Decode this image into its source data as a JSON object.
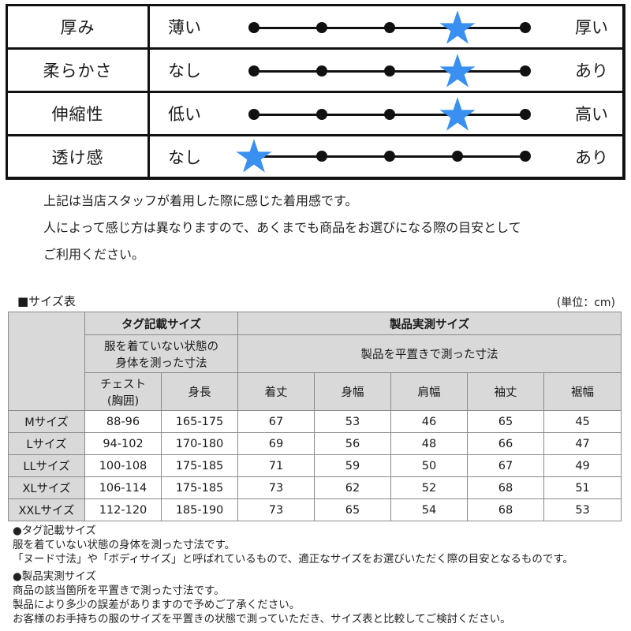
{
  "feel_table": {
    "scale_points": 5,
    "star_color": "#3a90f0",
    "rows": [
      {
        "label": "厚み",
        "low": "薄い",
        "high": "厚い",
        "position": 4
      },
      {
        "label": "柔らかさ",
        "low": "なし",
        "high": "あり",
        "position": 4
      },
      {
        "label": "伸縮性",
        "low": "低い",
        "high": "高い",
        "position": 4
      },
      {
        "label": "透け感",
        "low": "なし",
        "high": "あり",
        "position": 1
      }
    ]
  },
  "note": {
    "lines": [
      "上記は当店スタッフが着用した際に感じた着用感です。",
      "人によって感じ方は異なりますので、あくまでも商品をお選びになる際の目安として",
      "ご利用ください。"
    ]
  },
  "size_table": {
    "caption": "■サイズ表",
    "unit": "(単位：cm)",
    "group_tag": {
      "title": "タグ記載サイズ",
      "subtitle": "服を着ていない状態の身体を測った寸法",
      "subtitle_line1": "服を着ていない状態の",
      "subtitle_line2": "身体を測った寸法"
    },
    "group_product": {
      "title": "製品実測サイズ",
      "subtitle": "製品を平置きで測った寸法"
    },
    "columns": [
      {
        "label": "チェスト",
        "sub": "(胸囲)"
      },
      {
        "label": "身長"
      },
      {
        "label": "着丈"
      },
      {
        "label": "身幅"
      },
      {
        "label": "肩幅"
      },
      {
        "label": "袖丈"
      },
      {
        "label": "裾幅"
      }
    ],
    "rows": [
      {
        "size": "Mサイズ",
        "values": [
          "88-96",
          "165-175",
          "67",
          "53",
          "46",
          "65",
          "45"
        ]
      },
      {
        "size": "Lサイズ",
        "values": [
          "94-102",
          "170-180",
          "69",
          "56",
          "48",
          "66",
          "47"
        ]
      },
      {
        "size": "LLサイズ",
        "values": [
          "100-108",
          "175-185",
          "71",
          "59",
          "50",
          "67",
          "49"
        ]
      },
      {
        "size": "XLサイズ",
        "values": [
          "106-114",
          "175-185",
          "73",
          "62",
          "52",
          "68",
          "51"
        ]
      },
      {
        "size": "XXLサイズ",
        "values": [
          "112-120",
          "185-190",
          "73",
          "65",
          "54",
          "68",
          "53"
        ]
      }
    ]
  },
  "footnotes": {
    "tag": {
      "heading": "●タグ記載サイズ",
      "lines": [
        "服を着ていない状態の身体を測った寸法です。",
        "「ヌード寸法」や「ボディサイズ」と呼ばれているもので、適正なサイズをお選びいただく際の目安となるものです。"
      ]
    },
    "product": {
      "heading": "●製品実測サイズ",
      "lines": [
        "商品の該当箇所を平置きで測った寸法です。",
        "製品により多少の誤差がありますので予めご了承ください。",
        "お客様のお手持ちの服のサイズを平置きの状態で測っていただき、サイズ表と比較してご検討ください。"
      ]
    }
  }
}
